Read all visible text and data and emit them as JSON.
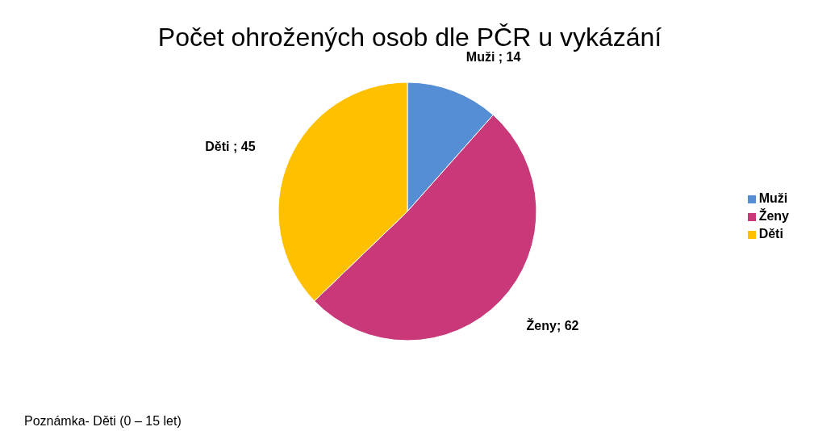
{
  "chart_data": {
    "type": "pie",
    "title": "Počet ohrožených osob dle PČR u vykázání",
    "categories": [
      "Muži",
      "Ženy",
      "Děti"
    ],
    "values": [
      14,
      62,
      45
    ],
    "colors": [
      "#558ed5",
      "#c9397a",
      "#ffc000"
    ],
    "value_labels": [
      "Muži ; 14",
      "Ženy; 62",
      "Děti ; 45"
    ],
    "legend": "right",
    "annotations": [
      "Poznámka- Děti (0 – 15 let)"
    ]
  }
}
